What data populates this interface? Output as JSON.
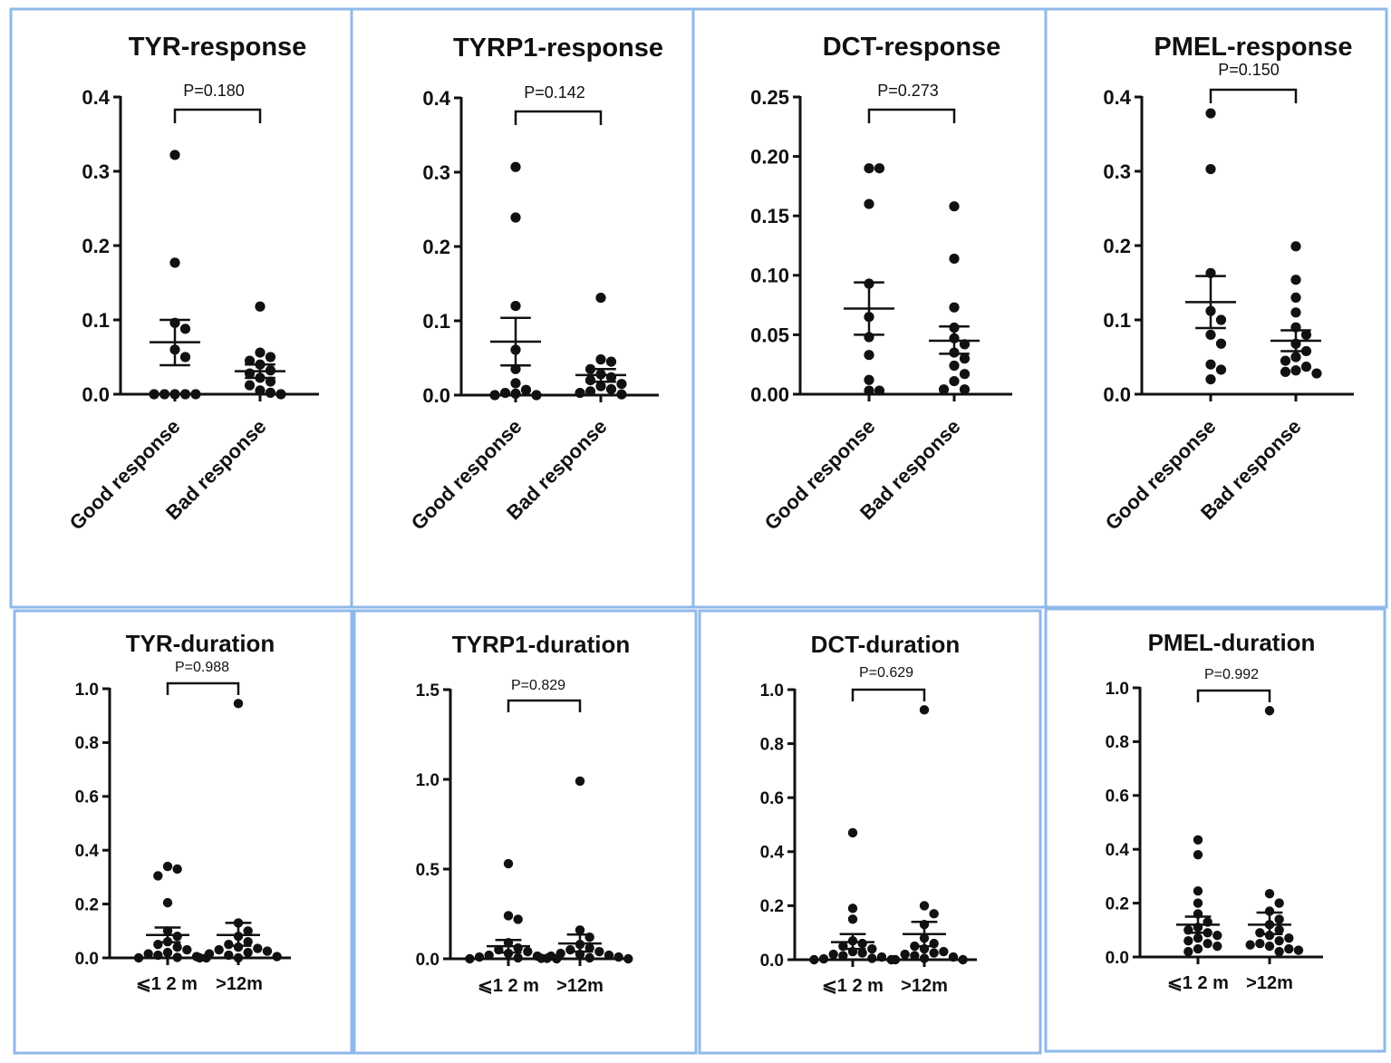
{
  "chart_data": [
    {
      "type": "scatter",
      "title": "TYR-response",
      "categories": [
        "Good response",
        "Bad response"
      ],
      "yticks": [
        "0.0",
        "0.1",
        "0.2",
        "0.3",
        "0.4"
      ],
      "ylim": [
        0,
        0.4
      ],
      "p_value": "P=0.180",
      "groups": [
        {
          "name": "Good response",
          "mean": 0.07,
          "sem_low": 0.039,
          "sem_high": 0.1,
          "points": [
            0.322,
            0.177,
            0.096,
            0.088,
            0.06,
            0.05,
            0.0,
            0.0,
            0.0,
            0.0,
            0.0
          ]
        },
        {
          "name": "Bad response",
          "mean": 0.031,
          "sem_low": 0.022,
          "sem_high": 0.04,
          "points": [
            0.118,
            0.056,
            0.05,
            0.045,
            0.04,
            0.032,
            0.028,
            0.022,
            0.017,
            0.012,
            0.005,
            0.002,
            0.0
          ]
        }
      ]
    },
    {
      "type": "scatter",
      "title": "TYRP1-response",
      "categories": [
        "Good response",
        "Bad response"
      ],
      "yticks": [
        "0.0",
        "0.1",
        "0.2",
        "0.3",
        "0.4"
      ],
      "ylim": [
        0,
        0.4
      ],
      "p_value": "P=0.142",
      "groups": [
        {
          "name": "Good response",
          "mean": 0.072,
          "sem_low": 0.04,
          "sem_high": 0.104,
          "points": [
            0.307,
            0.239,
            0.12,
            0.061,
            0.035,
            0.016,
            0.007,
            0.003,
            0.002,
            0.0,
            0.0
          ]
        },
        {
          "name": "Bad response",
          "mean": 0.027,
          "sem_low": 0.018,
          "sem_high": 0.035,
          "points": [
            0.131,
            0.048,
            0.045,
            0.035,
            0.028,
            0.024,
            0.02,
            0.015,
            0.012,
            0.008,
            0.005,
            0.003,
            0.001
          ]
        }
      ]
    },
    {
      "type": "scatter",
      "title": "DCT-response",
      "categories": [
        "Good response",
        "Bad response"
      ],
      "yticks": [
        "0.00",
        "0.05",
        "0.10",
        "0.15",
        "0.20",
        "0.25"
      ],
      "ylim": [
        0,
        0.25
      ],
      "p_value": "P=0.273",
      "groups": [
        {
          "name": "Good response",
          "mean": 0.072,
          "sem_low": 0.05,
          "sem_high": 0.094,
          "points": [
            0.19,
            0.19,
            0.16,
            0.093,
            0.065,
            0.048,
            0.033,
            0.012,
            0.003,
            0.003
          ]
        },
        {
          "name": "Bad response",
          "mean": 0.045,
          "sem_low": 0.034,
          "sem_high": 0.057,
          "points": [
            0.158,
            0.114,
            0.073,
            0.056,
            0.047,
            0.042,
            0.035,
            0.03,
            0.024,
            0.017,
            0.011,
            0.004,
            0.004
          ]
        }
      ]
    },
    {
      "type": "scatter",
      "title": "PMEL-response",
      "categories": [
        "Good response",
        "Bad response"
      ],
      "yticks": [
        "0.0",
        "0.1",
        "0.2",
        "0.3",
        "0.4"
      ],
      "ylim": [
        0,
        0.4
      ],
      "p_value": "P=0.150",
      "groups": [
        {
          "name": "Good response",
          "mean": 0.124,
          "sem_low": 0.089,
          "sem_high": 0.159,
          "points": [
            0.378,
            0.303,
            0.163,
            0.112,
            0.1,
            0.08,
            0.068,
            0.04,
            0.033,
            0.02
          ]
        },
        {
          "name": "Bad response",
          "mean": 0.072,
          "sem_low": 0.058,
          "sem_high": 0.086,
          "points": [
            0.199,
            0.154,
            0.13,
            0.11,
            0.09,
            0.08,
            0.068,
            0.058,
            0.05,
            0.045,
            0.037,
            0.032,
            0.03,
            0.028
          ]
        }
      ]
    },
    {
      "type": "scatter",
      "title": "TYR-duration",
      "categories": [
        "⩽1 2 m",
        ">12m"
      ],
      "yticks": [
        "0.0",
        "0.2",
        "0.4",
        "0.6",
        "0.8",
        "1.0"
      ],
      "ylim": [
        0,
        1.0
      ],
      "p_value": "P=0.988",
      "groups": [
        {
          "name": "⩽1 2 m",
          "mean": 0.085,
          "sem_low": 0.058,
          "sem_high": 0.113,
          "points": [
            0.34,
            0.33,
            0.305,
            0.205,
            0.1,
            0.08,
            0.06,
            0.05,
            0.04,
            0.03,
            0.02,
            0.015,
            0.01,
            0.005,
            0.002,
            0.0,
            0.0
          ]
        },
        {
          "name": ">12m",
          "mean": 0.085,
          "sem_low": 0.045,
          "sem_high": 0.13,
          "points": [
            0.945,
            0.13,
            0.1,
            0.08,
            0.06,
            0.05,
            0.04,
            0.035,
            0.03,
            0.025,
            0.02,
            0.015,
            0.01,
            0.005,
            0.0,
            0.0
          ]
        }
      ]
    },
    {
      "type": "scatter",
      "title": "TYRP1-duration",
      "categories": [
        "⩽1 2 m",
        ">12m"
      ],
      "yticks": [
        "0.0",
        "0.5",
        "1.0",
        "1.5"
      ],
      "ylim": [
        0,
        1.5
      ],
      "p_value": "P=0.829",
      "groups": [
        {
          "name": "⩽1 2 m",
          "mean": 0.07,
          "sem_low": 0.035,
          "sem_high": 0.105,
          "points": [
            0.53,
            0.24,
            0.22,
            0.09,
            0.06,
            0.05,
            0.04,
            0.03,
            0.02,
            0.015,
            0.01,
            0.005,
            0.003,
            0.0,
            0.0
          ]
        },
        {
          "name": ">12m",
          "mean": 0.085,
          "sem_low": 0.04,
          "sem_high": 0.135,
          "points": [
            0.99,
            0.16,
            0.12,
            0.08,
            0.06,
            0.05,
            0.04,
            0.03,
            0.025,
            0.02,
            0.015,
            0.01,
            0.005,
            0.003,
            0.0
          ]
        }
      ]
    },
    {
      "type": "scatter",
      "title": "DCT-duration",
      "categories": [
        "⩽1 2 m",
        ">12m"
      ],
      "yticks": [
        "0.0",
        "0.2",
        "0.4",
        "0.6",
        "0.8",
        "1.0"
      ],
      "ylim": [
        0,
        1.0
      ],
      "p_value": "P=0.629",
      "groups": [
        {
          "name": "⩽1 2 m",
          "mean": 0.065,
          "sem_low": 0.04,
          "sem_high": 0.095,
          "points": [
            0.47,
            0.19,
            0.15,
            0.07,
            0.06,
            0.05,
            0.04,
            0.03,
            0.025,
            0.02,
            0.015,
            0.01,
            0.005,
            0.003,
            0.0,
            0.0
          ]
        },
        {
          "name": ">12m",
          "mean": 0.095,
          "sem_low": 0.05,
          "sem_high": 0.14,
          "points": [
            0.925,
            0.2,
            0.17,
            0.13,
            0.08,
            0.06,
            0.05,
            0.04,
            0.03,
            0.025,
            0.02,
            0.015,
            0.01,
            0.005,
            0.0,
            0.0
          ]
        }
      ]
    },
    {
      "type": "scatter",
      "title": "PMEL-duration",
      "categories": [
        "⩽1 2 m",
        ">12m"
      ],
      "yticks": [
        "0.0",
        "0.2",
        "0.4",
        "0.6",
        "0.8",
        "1.0"
      ],
      "ylim": [
        0,
        1.0
      ],
      "p_value": "P=0.992",
      "groups": [
        {
          "name": "⩽1 2 m",
          "mean": 0.12,
          "sem_low": 0.09,
          "sem_high": 0.15,
          "points": [
            0.435,
            0.38,
            0.245,
            0.2,
            0.16,
            0.13,
            0.11,
            0.1,
            0.09,
            0.08,
            0.07,
            0.06,
            0.05,
            0.04,
            0.03,
            0.02
          ]
        },
        {
          "name": ">12m",
          "mean": 0.12,
          "sem_low": 0.085,
          "sem_high": 0.165,
          "points": [
            0.915,
            0.235,
            0.2,
            0.17,
            0.14,
            0.12,
            0.1,
            0.09,
            0.08,
            0.07,
            0.06,
            0.05,
            0.045,
            0.04,
            0.03,
            0.025,
            0.02
          ]
        }
      ]
    }
  ]
}
